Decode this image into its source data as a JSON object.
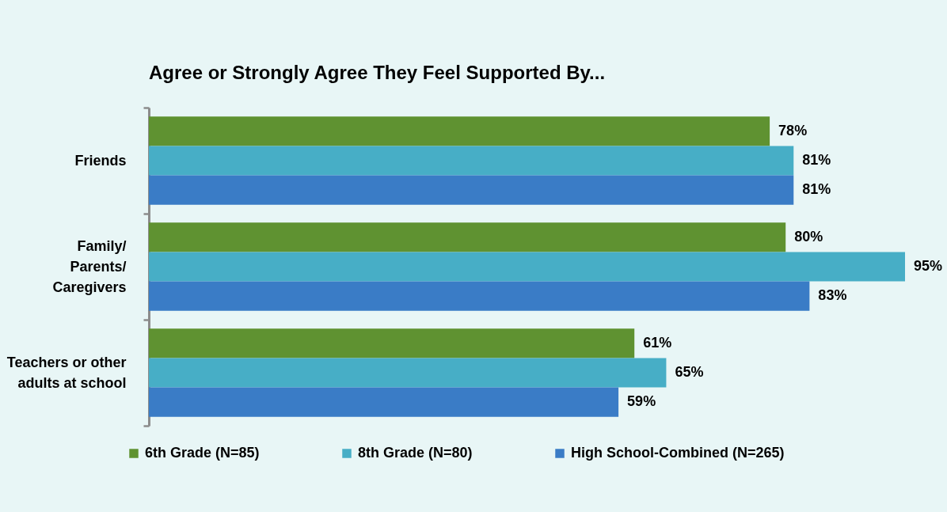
{
  "chart_data": {
    "type": "bar",
    "orientation": "horizontal",
    "title": "Agree or Strongly Agree They Feel Supported By...",
    "categories": [
      "Friends",
      "Family/ Parents/ Caregivers",
      "Teachers or other adults at school"
    ],
    "series": [
      {
        "name": "6th Grade (N=85)",
        "color": "#5f9231",
        "values": [
          78,
          80,
          61
        ],
        "value_labels": [
          "78%",
          "80%",
          "61%"
        ]
      },
      {
        "name": "8th Grade (N=80)",
        "color": "#47aec6",
        "values": [
          81,
          95,
          65
        ],
        "value_labels": [
          "81%",
          "95%",
          "65%"
        ]
      },
      {
        "name": "High School-Combined (N=265)",
        "color": "#3a7cc6",
        "values": [
          81,
          83,
          59
        ],
        "value_labels": [
          "81%",
          "83%",
          "59%"
        ]
      }
    ],
    "legend": "bottom"
  }
}
